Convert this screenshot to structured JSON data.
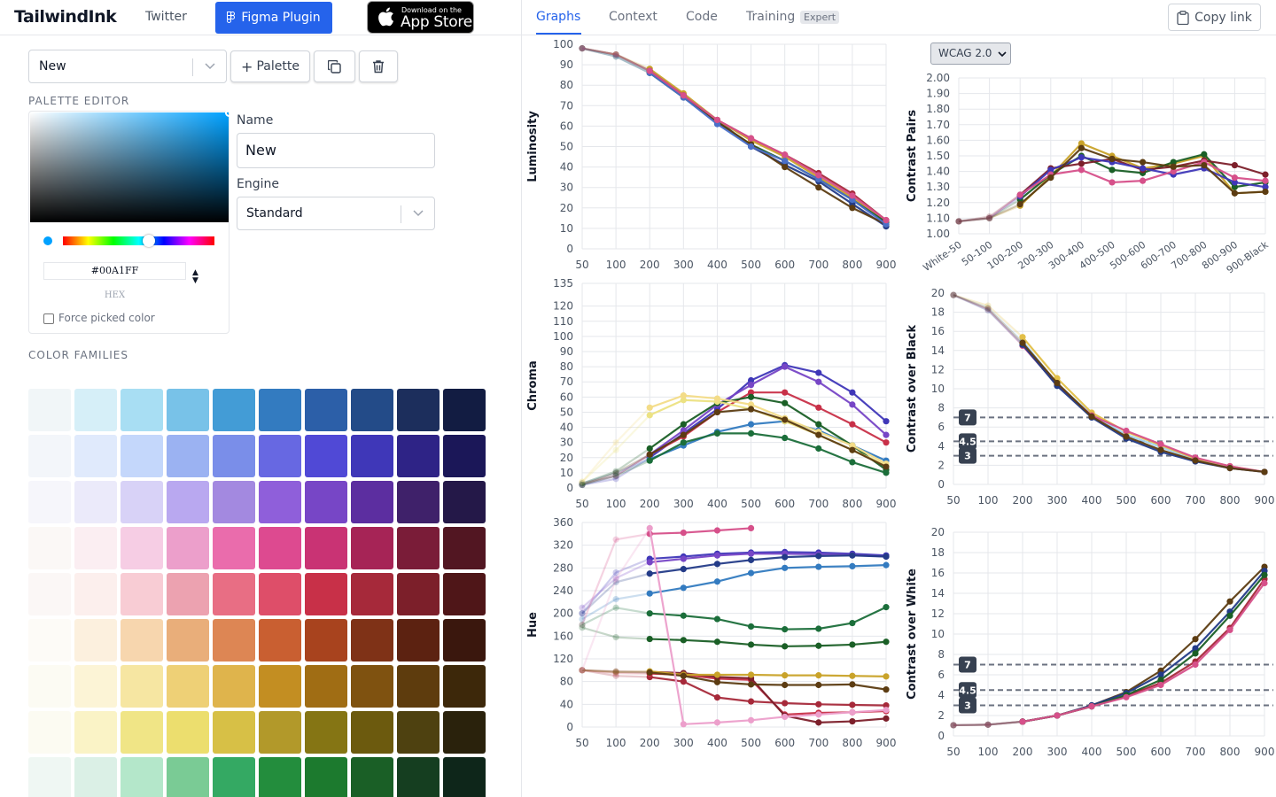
{
  "header": {
    "logo": "TailwindInk",
    "twitter": "Twitter",
    "figma_plugin": "Figma Plugin",
    "appstore_small": "Download on the",
    "appstore_big": "App Store"
  },
  "tabs": [
    {
      "label": "Graphs"
    },
    {
      "label": "Context"
    },
    {
      "label": "Code"
    },
    {
      "label": "Training"
    }
  ],
  "expert_badge": "Expert",
  "copy_link": "Copy link",
  "palette_select": "New",
  "add_palette": "Palette",
  "palette_editor_label": "PALETTE EDITOR",
  "picker": {
    "color": "#00A1FF",
    "hex_value": "#00A1FF",
    "hex_label": "HEX",
    "force_label": "Force picked color"
  },
  "name_label": "Name",
  "name_value": "New",
  "engine_label": "Engine",
  "engine_value": "Standard",
  "color_families_label": "COLOR FAMILIES",
  "swatches": [
    [
      "#f1f6f8",
      "#d6eff8",
      "#a8def3",
      "#78c2e8",
      "#439cd6",
      "#337bc0",
      "#2c5fa8",
      "#234b88",
      "#1c2e5c",
      "#121c42"
    ],
    [
      "#f3f6fa",
      "#e0eafc",
      "#c4d7fb",
      "#9bb2f2",
      "#7a8ee9",
      "#6768e2",
      "#5049d6",
      "#3f37b8",
      "#2e2386",
      "#1b1758"
    ],
    [
      "#f6f6fb",
      "#ebeafa",
      "#d8d2f7",
      "#b9a8f0",
      "#a389e0",
      "#8f5fda",
      "#7746c6",
      "#5c2ea0",
      "#3f216a",
      "#241848"
    ],
    [
      "#fbf8f6",
      "#fbeef2",
      "#f6cde4",
      "#ec9fcb",
      "#ea6cac",
      "#dd4a90",
      "#c93374",
      "#a62456",
      "#7a1c38",
      "#521622"
    ],
    [
      "#fbf7f6",
      "#fcefed",
      "#f8ccd4",
      "#eca2b0",
      "#e86e84",
      "#de4e69",
      "#c83048",
      "#a6293a",
      "#7c1f2a",
      "#4f1618"
    ],
    [
      "#fdfbf7",
      "#fcf0de",
      "#f7d6ae",
      "#e9ae7a",
      "#dd8654",
      "#c95f31",
      "#a8431e",
      "#7f3217",
      "#5c2211",
      "#3a170d"
    ],
    [
      "#fcfbf3",
      "#fcf4d6",
      "#f6e6a2",
      "#eed076",
      "#dfb44c",
      "#c38e22",
      "#a06d14",
      "#7f5210",
      "#5e3c0d",
      "#3d280a"
    ],
    [
      "#fcfbf2",
      "#faf3c6",
      "#f0e586",
      "#ecde6e",
      "#d7c046",
      "#b2992a",
      "#857514",
      "#6c5a0e",
      "#4e4110",
      "#2a220c"
    ],
    [
      "#eff7f3",
      "#dbf0e6",
      "#b4e7ca",
      "#7acb95",
      "#34a963",
      "#238d3d",
      "#1c7a2e",
      "#1a5f26",
      "#153e20",
      "#0e261a"
    ]
  ],
  "chart_data": [
    {
      "type": "line",
      "title": "",
      "ylabel": "Luminosity",
      "xlabel": "",
      "x": [
        50,
        100,
        200,
        300,
        400,
        500,
        600,
        700,
        800,
        900
      ],
      "ylim": [
        0,
        100
      ],
      "series": [
        {
          "color": "#233b88",
          "values": [
            98,
            95,
            87,
            75,
            63,
            50,
            41,
            33,
            22,
            11
          ]
        },
        {
          "color": "#a6293a",
          "values": [
            98,
            95,
            87,
            75,
            63,
            54,
            46,
            37,
            27,
            14
          ]
        },
        {
          "color": "#c9a32a",
          "values": [
            98,
            95,
            88,
            76,
            63,
            53,
            45,
            35,
            25,
            13
          ]
        },
        {
          "color": "#1a5f26",
          "values": [
            98,
            94,
            86,
            74,
            62,
            51,
            43,
            34,
            24,
            13
          ]
        },
        {
          "color": "#5c3c12",
          "values": [
            98,
            95,
            87,
            75,
            62,
            51,
            40,
            30,
            20,
            12
          ]
        },
        {
          "color": "#4a6fc8",
          "values": [
            98,
            94,
            86,
            74,
            61,
            50,
            43,
            34,
            24,
            12
          ]
        },
        {
          "color": "#d6508a",
          "values": [
            98,
            95,
            87,
            75,
            63,
            54,
            46,
            36,
            26,
            14
          ]
        }
      ]
    },
    {
      "type": "line",
      "title": "",
      "ylabel": "WCAG 2.0 Contrast Pairs",
      "xlabel": "",
      "categories": [
        "White-50",
        "50-100",
        "100-200",
        "200-300",
        "300-400",
        "400-500",
        "500-600",
        "600-700",
        "700-800",
        "800-900",
        "900-Black"
      ],
      "ylim": [
        1.0,
        2.0
      ],
      "series": [
        {
          "color": "#c9a32a",
          "values": [
            1.08,
            1.1,
            1.18,
            1.37,
            1.58,
            1.5,
            1.42,
            1.45,
            1.5,
            1.26,
            1.27
          ]
        },
        {
          "color": "#1a5f26",
          "values": [
            1.08,
            1.1,
            1.22,
            1.38,
            1.5,
            1.41,
            1.39,
            1.46,
            1.51,
            1.3,
            1.33
          ]
        },
        {
          "color": "#7c1f2a",
          "values": [
            1.08,
            1.11,
            1.25,
            1.42,
            1.45,
            1.48,
            1.41,
            1.43,
            1.47,
            1.44,
            1.38
          ]
        },
        {
          "color": "#3f37b8",
          "values": [
            1.08,
            1.1,
            1.24,
            1.41,
            1.49,
            1.46,
            1.42,
            1.38,
            1.42,
            1.33,
            1.3
          ]
        },
        {
          "color": "#d6508a",
          "values": [
            1.08,
            1.1,
            1.25,
            1.38,
            1.41,
            1.33,
            1.34,
            1.4,
            1.46,
            1.36,
            1.34
          ]
        },
        {
          "color": "#5c3c12",
          "values": [
            1.08,
            1.1,
            1.19,
            1.36,
            1.55,
            1.48,
            1.46,
            1.43,
            1.44,
            1.26,
            1.27
          ]
        }
      ]
    },
    {
      "type": "line",
      "title": "",
      "ylabel": "Chroma",
      "xlabel": "",
      "x": [
        50,
        100,
        200,
        300,
        400,
        500,
        600,
        700,
        800,
        900
      ],
      "ylim": [
        0,
        135
      ],
      "series": [
        {
          "color": "#3f37b8",
          "values": [
            2,
            6,
            20,
            36,
            52,
            71,
            81,
            76,
            63,
            44
          ]
        },
        {
          "color": "#7746c6",
          "values": [
            2,
            8,
            22,
            38,
            55,
            68,
            80,
            70,
            55,
            35
          ]
        },
        {
          "color": "#c83048",
          "values": [
            3,
            8,
            22,
            34,
            50,
            63,
            63,
            53,
            42,
            30
          ]
        },
        {
          "color": "#337bc0",
          "values": [
            3,
            10,
            19,
            28,
            37,
            42,
            44,
            38,
            28,
            18
          ]
        },
        {
          "color": "#1a5f26",
          "values": [
            3,
            11,
            26,
            42,
            56,
            60,
            56,
            42,
            28,
            12
          ]
        },
        {
          "color": "#ece282",
          "values": [
            4,
            25,
            48,
            58,
            57,
            52,
            44,
            35,
            25,
            15
          ]
        },
        {
          "color": "#f3dc88",
          "values": [
            4,
            30,
            53,
            61,
            59,
            55,
            46,
            37,
            28,
            16
          ]
        },
        {
          "color": "#5c3c12",
          "values": [
            2,
            10,
            22,
            35,
            50,
            52,
            45,
            35,
            25,
            14
          ]
        },
        {
          "color": "#1b6e3a",
          "values": [
            2,
            8,
            18,
            30,
            36,
            36,
            33,
            26,
            17,
            10
          ]
        }
      ]
    },
    {
      "type": "line",
      "title": "",
      "ylabel": "Contrast over Black",
      "xlabel": "",
      "x": [
        50,
        100,
        200,
        300,
        400,
        500,
        600,
        700,
        800,
        900
      ],
      "ylim": [
        0,
        20
      ],
      "annotations": [
        "7",
        "4.5",
        "3"
      ],
      "series": [
        {
          "color": "#9fd2f0",
          "values": [
            19.8,
            18.5,
            15,
            10.5,
            7.3,
            5.2,
            3.9,
            2.6,
            1.8,
            1.3
          ]
        },
        {
          "color": "#e2bf48",
          "values": [
            19.8,
            18.7,
            15.4,
            11.1,
            7.5,
            5.5,
            4.1,
            2.7,
            1.9,
            1.3
          ]
        },
        {
          "color": "#d6508a",
          "values": [
            19.8,
            18.3,
            14.5,
            10.4,
            7.2,
            5.6,
            4.2,
            2.8,
            1.9,
            1.3
          ]
        },
        {
          "color": "#233b88",
          "values": [
            19.8,
            18.2,
            14.6,
            10.3,
            7.0,
            4.8,
            3.4,
            2.4,
            1.7,
            1.3
          ]
        },
        {
          "color": "#5c3c12",
          "values": [
            19.8,
            18.4,
            14.8,
            10.6,
            7.1,
            5.0,
            3.6,
            2.5,
            1.7,
            1.3
          ]
        }
      ]
    },
    {
      "type": "line",
      "title": "",
      "ylabel": "Hue",
      "xlabel": "",
      "x": [
        50,
        100,
        200,
        300,
        400,
        500,
        600,
        700,
        800,
        900
      ],
      "ylim": [
        0,
        360
      ],
      "series": [
        {
          "color": "#3f37b8",
          "values": [
            200,
            272,
            296,
            300,
            305,
            307,
            308,
            307,
            305,
            302
          ]
        },
        {
          "color": "#7746c6",
          "values": [
            210,
            262,
            290,
            296,
            302,
            305,
            305,
            304,
            303,
            300
          ]
        },
        {
          "color": "#233b88",
          "values": [
            200,
            255,
            270,
            278,
            287,
            294,
            299,
            301,
            302,
            300
          ]
        },
        {
          "color": "#337bc0",
          "values": [
            190,
            225,
            235,
            245,
            256,
            271,
            280,
            282,
            283,
            285
          ]
        },
        {
          "color": "#d6508a",
          "values": [
            180,
            330,
            340,
            342,
            346,
            350,
            null,
            null,
            null,
            null
          ]
        },
        {
          "color": "#1b6e3a",
          "values": [
            180,
            210,
            200,
            196,
            190,
            177,
            172,
            173,
            183,
            211
          ]
        },
        {
          "color": "#1a5f26",
          "values": [
            175,
            158,
            155,
            153,
            150,
            145,
            142,
            143,
            145,
            150
          ]
        },
        {
          "color": "#a6293a",
          "values": [
            100,
            90,
            88,
            80,
            52,
            45,
            42,
            40,
            39,
            38
          ]
        },
        {
          "color": "#c83048",
          "values": [
            100,
            95,
            94,
            92,
            85,
            83,
            22,
            25,
            26,
            28
          ]
        },
        {
          "color": "#7c1f2a",
          "values": [
            100,
            98,
            97,
            95,
            88,
            86,
            20,
            8,
            10,
            15
          ]
        },
        {
          "color": "#c9a32a",
          "values": [
            100,
            97,
            98,
            92,
            92,
            92,
            91,
            91,
            90,
            89
          ]
        },
        {
          "color": "#5c3c12",
          "values": [
            100,
            97,
            96,
            90,
            79,
            75,
            74,
            74,
            75,
            66
          ]
        },
        {
          "color": "#ec9fcb",
          "values": [
            100,
            260,
            350,
            5,
            8,
            12,
            18,
            22,
            26,
            30
          ]
        }
      ]
    },
    {
      "type": "line",
      "title": "",
      "ylabel": "Contrast over White",
      "xlabel": "",
      "x": [
        50,
        100,
        200,
        300,
        400,
        500,
        600,
        700,
        800,
        900
      ],
      "ylim": [
        0,
        20
      ],
      "annotations": [
        "7",
        "4.5",
        "3"
      ],
      "series": [
        {
          "color": "#5c3c12",
          "values": [
            1.05,
            1.1,
            1.4,
            2.0,
            3.0,
            4.3,
            6.4,
            9.5,
            13.2,
            16.6
          ]
        },
        {
          "color": "#233b88",
          "values": [
            1.05,
            1.1,
            1.4,
            2.0,
            3.0,
            4.2,
            6.0,
            8.6,
            12.2,
            16.2
          ]
        },
        {
          "color": "#a6293a",
          "values": [
            1.05,
            1.1,
            1.4,
            2.0,
            2.9,
            3.9,
            5.2,
            7.3,
            10.6,
            15.4
          ]
        },
        {
          "color": "#1a5f26",
          "values": [
            1.05,
            1.1,
            1.4,
            2.0,
            2.9,
            4.0,
            5.5,
            8.1,
            11.8,
            15.8
          ]
        },
        {
          "color": "#d6508a",
          "values": [
            1.05,
            1.1,
            1.4,
            2.0,
            2.9,
            3.8,
            5.0,
            7.0,
            10.4,
            15.0
          ]
        }
      ]
    }
  ],
  "wcag_select": "WCAG 2.0"
}
